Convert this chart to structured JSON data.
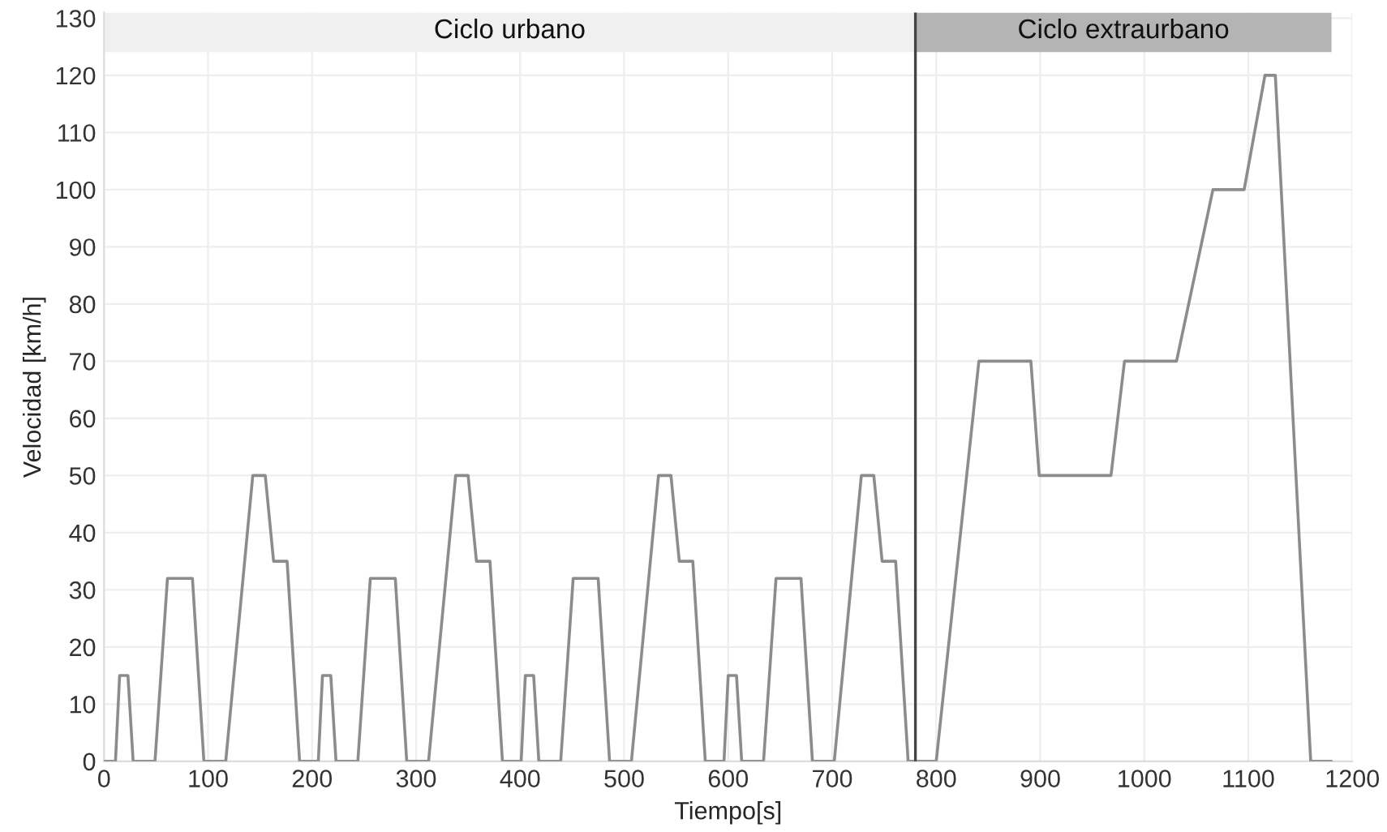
{
  "chart_data": {
    "type": "line",
    "xlabel": "Tiempo[s]",
    "ylabel": "Velocidad [km/h]",
    "x": [
      0,
      11,
      15,
      23,
      28,
      49,
      61,
      85,
      96,
      117,
      143,
      155,
      163,
      176,
      188,
      195,
      206,
      210,
      218,
      223,
      244,
      256,
      280,
      291,
      312,
      338,
      350,
      358,
      371,
      383,
      390,
      401,
      405,
      413,
      418,
      439,
      451,
      475,
      486,
      507,
      533,
      545,
      553,
      566,
      578,
      585,
      596,
      600,
      608,
      613,
      634,
      646,
      670,
      681,
      702,
      728,
      740,
      748,
      761,
      773,
      780,
      800,
      841,
      891,
      899,
      968,
      981,
      1031,
      1066,
      1096,
      1116,
      1126,
      1160,
      1180
    ],
    "series": [
      {
        "color": "#8c8c8c",
        "values": [
          0,
          0,
          15,
          15,
          0,
          0,
          32,
          32,
          0,
          0,
          50,
          50,
          35,
          35,
          0,
          0,
          0,
          15,
          15,
          0,
          0,
          32,
          32,
          0,
          0,
          50,
          50,
          35,
          35,
          0,
          0,
          0,
          15,
          15,
          0,
          0,
          32,
          32,
          0,
          0,
          50,
          50,
          35,
          35,
          0,
          0,
          0,
          15,
          15,
          0,
          0,
          32,
          32,
          0,
          0,
          50,
          50,
          35,
          35,
          0,
          0,
          0,
          70,
          70,
          50,
          50,
          70,
          70,
          100,
          100,
          120,
          120,
          0,
          0
        ]
      }
    ],
    "xlim": [
      0,
      1200
    ],
    "ylim": [
      0,
      131
    ],
    "xticks": [
      0,
      100,
      200,
      300,
      400,
      500,
      600,
      700,
      800,
      900,
      1000,
      1100,
      1200
    ],
    "yticks": [
      0,
      10,
      20,
      30,
      40,
      50,
      60,
      70,
      80,
      90,
      100,
      110,
      120,
      130
    ],
    "grid": true,
    "marker": "none",
    "line_style": "solid",
    "legend": false,
    "ref_lines": [
      {
        "axis": "x",
        "value": 780,
        "color": "#444444",
        "line_style": "solid"
      }
    ],
    "bands": [
      {
        "axis": "x",
        "from": 0,
        "to": 780,
        "label": "Ciclo urbano",
        "color": "#f0f0f0"
      },
      {
        "axis": "x",
        "from": 780,
        "to": 1180,
        "label": "Ciclo extraurbano",
        "color": "#b4b4b4"
      }
    ]
  }
}
